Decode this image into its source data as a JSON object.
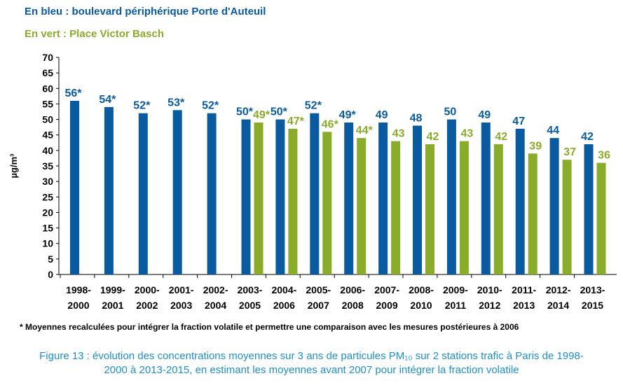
{
  "legend": {
    "blue_text": "En bleu : boulevard périphérique Porte d'Auteuil",
    "green_text": "En vert : Place Victor Basch"
  },
  "colors": {
    "blue": "#0a5aa0",
    "green": "#8aac2b",
    "caption": "#1e90c8",
    "axis": "#000000"
  },
  "chart_data": {
    "type": "bar",
    "ylabel": "µg/m³",
    "ylim": [
      0,
      70
    ],
    "yticks": [
      0,
      5,
      10,
      15,
      20,
      25,
      30,
      35,
      40,
      45,
      50,
      55,
      60,
      65,
      70
    ],
    "grid": false,
    "categories": [
      [
        "1998-",
        "2000"
      ],
      [
        "1999-",
        "2001"
      ],
      [
        "2000-",
        "2002"
      ],
      [
        "2001-",
        "2003"
      ],
      [
        "2002-",
        "2004"
      ],
      [
        "2003-",
        "2005"
      ],
      [
        "2004-",
        "2006"
      ],
      [
        "2005-",
        "2007"
      ],
      [
        "2006-",
        "2008"
      ],
      [
        "2007-",
        "2009"
      ],
      [
        "2008-",
        "2010"
      ],
      [
        "2009-",
        "2011"
      ],
      [
        "2010-",
        "2012"
      ],
      [
        "2011-",
        "2013"
      ],
      [
        "2012-",
        "2014"
      ],
      [
        "2013-",
        "2015"
      ]
    ],
    "series": [
      {
        "color": "#0a5aa0",
        "values": [
          56,
          54,
          52,
          53,
          52,
          50,
          50,
          52,
          49,
          49,
          48,
          50,
          49,
          47,
          44,
          42
        ],
        "labels": [
          "56*",
          "54*",
          "52*",
          "53*",
          "52*",
          "50*",
          "50*",
          "52*",
          "49*",
          "49",
          "48",
          "50",
          "49",
          "47",
          "44",
          "42"
        ]
      },
      {
        "color": "#8aac2b",
        "values": [
          null,
          null,
          null,
          null,
          null,
          49,
          47,
          46,
          44,
          43,
          42,
          43,
          42,
          39,
          37,
          36
        ],
        "labels": [
          null,
          null,
          null,
          null,
          null,
          "49*",
          "47*",
          "46*",
          "44*",
          "43",
          "42",
          "43",
          "42",
          "39",
          "37",
          "36"
        ]
      }
    ]
  },
  "footnote": "* Moyennes recalculées pour intégrer la fraction volatile et permettre une comparaison avec les mesures postérieures à 2006",
  "caption": {
    "line1": "Figure 13 : évolution des concentrations moyennes sur 3 ans de particules PM₁₀ sur 2 stations trafic à Paris de 1998-",
    "line2": "2000 à 2013-2015, en estimant les moyennes avant 2007 pour intégrer la fraction volatile"
  }
}
